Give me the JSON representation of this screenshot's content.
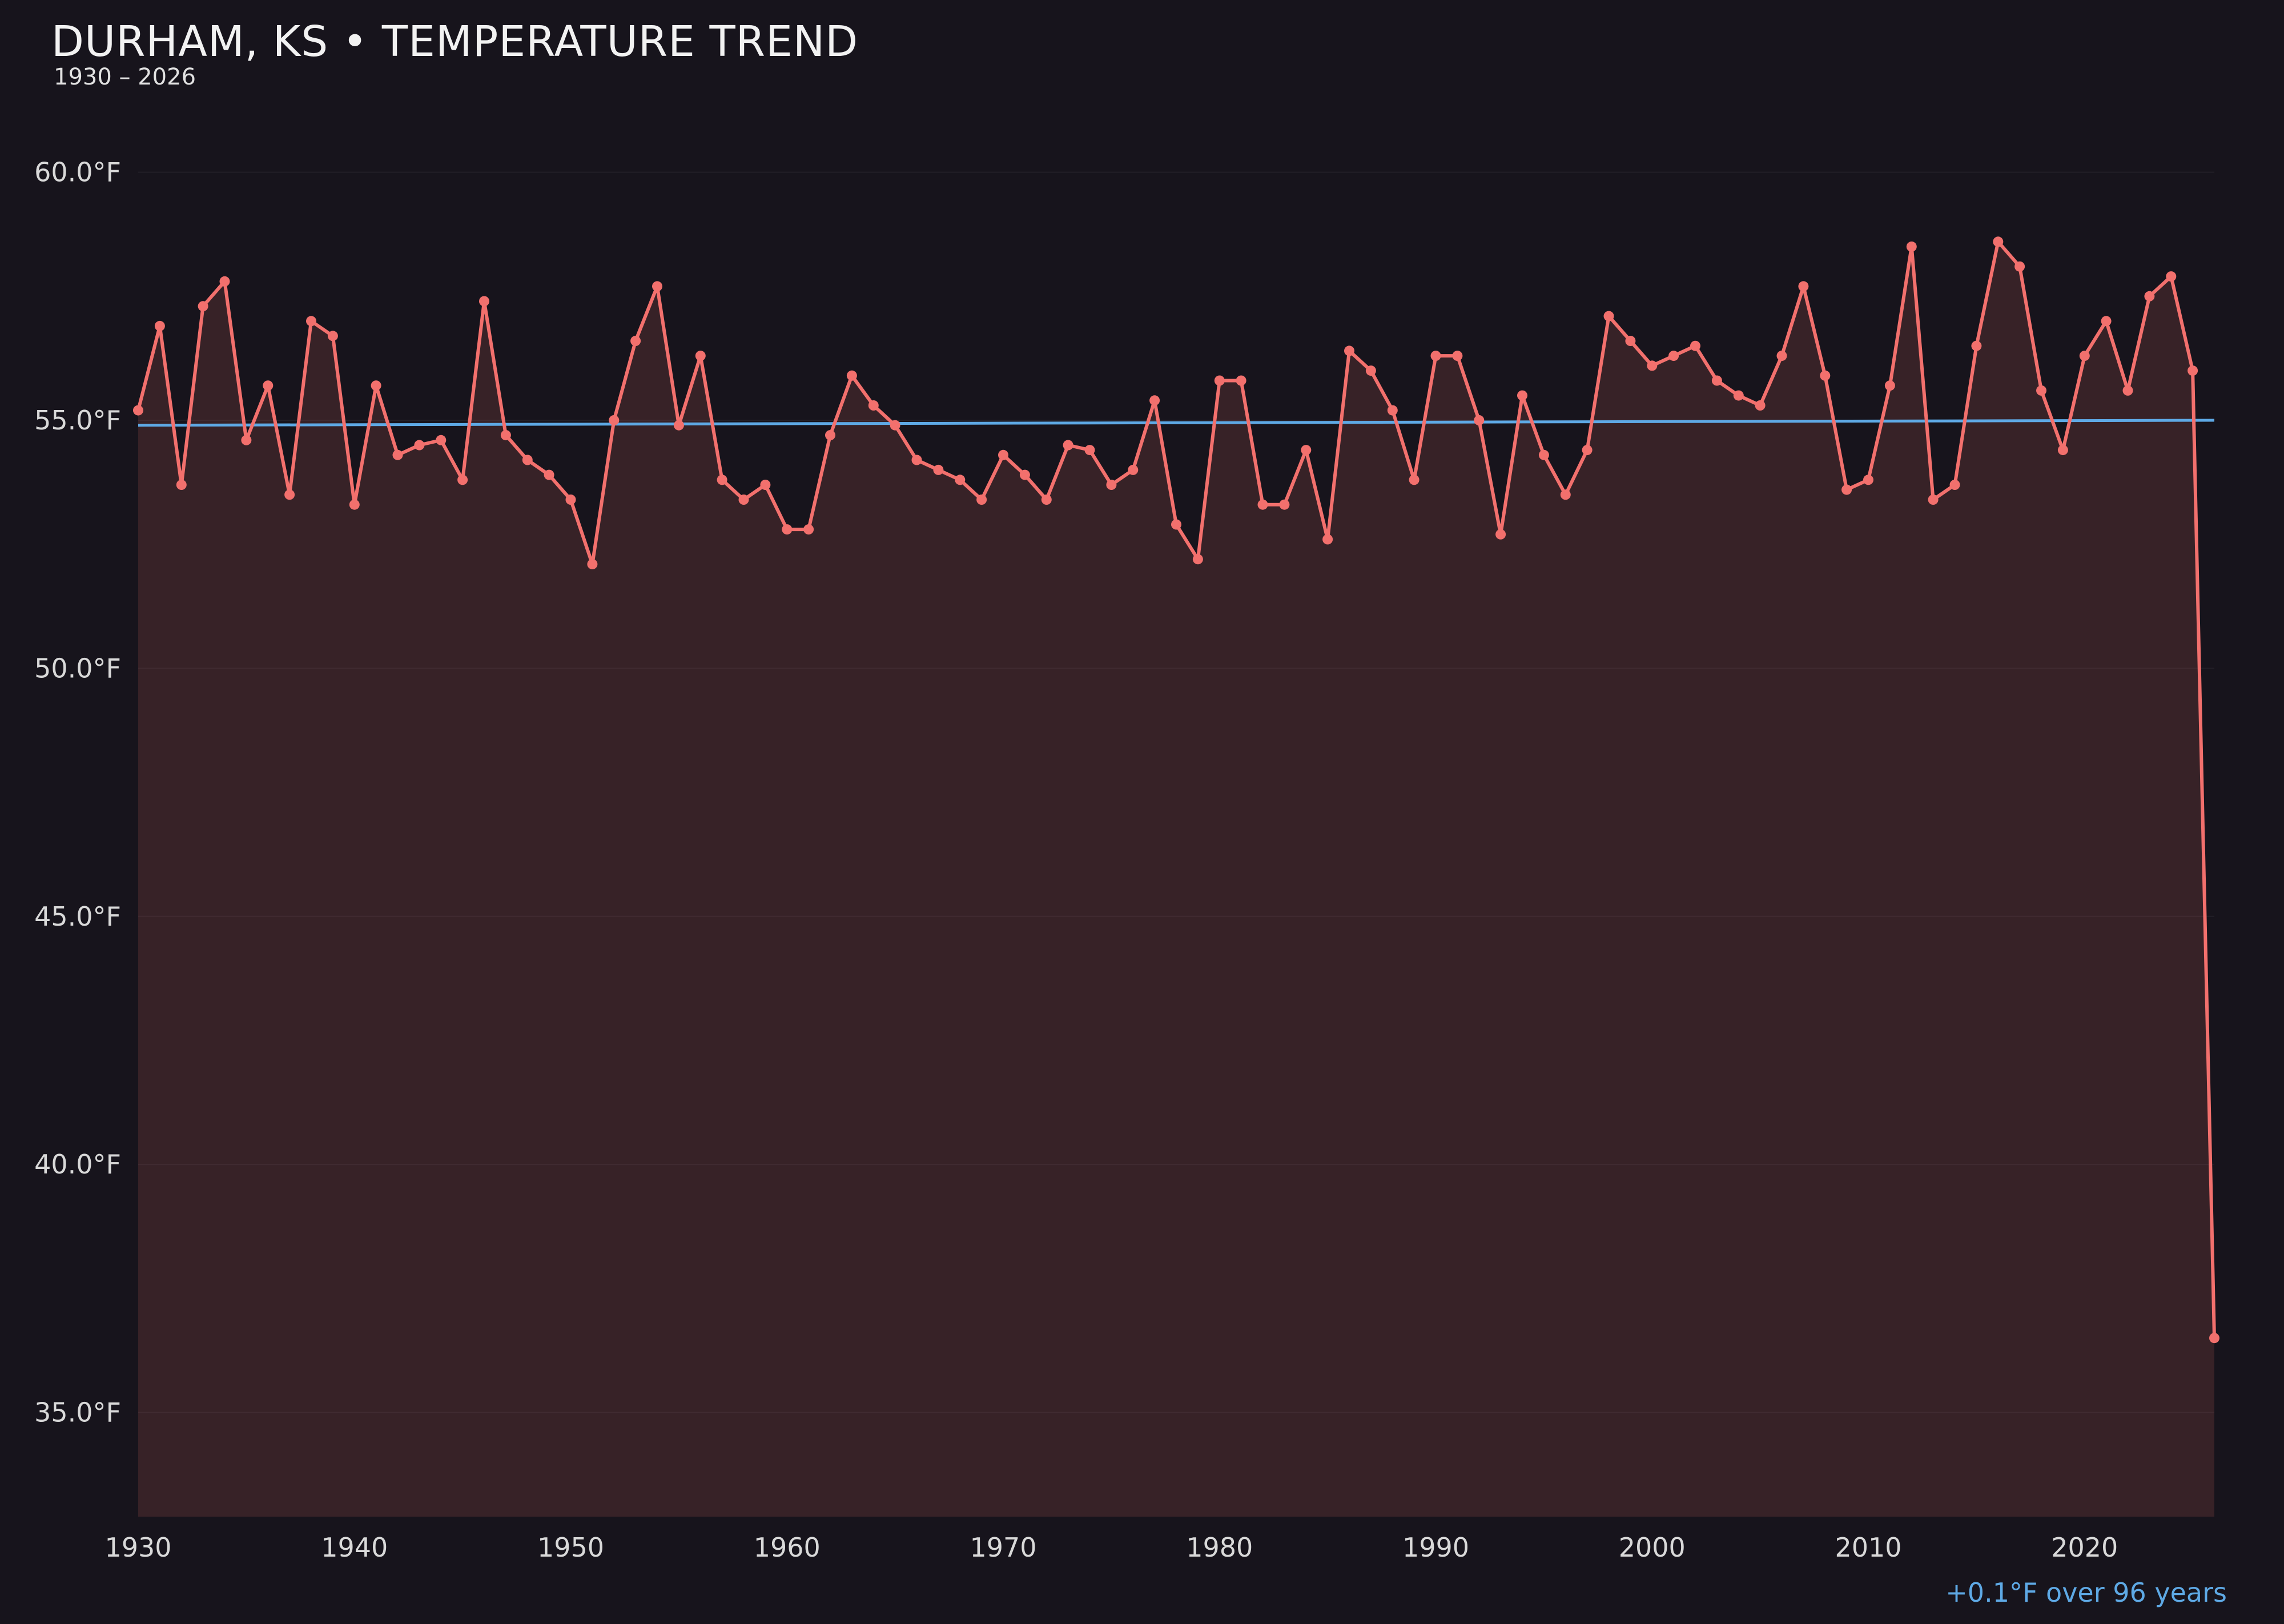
{
  "header": {
    "title": "DURHAM, KS • TEMPERATURE TREND",
    "subtitle": "1930 – 2026"
  },
  "footer": {
    "trend_note": "+0.1°F over 96 years"
  },
  "chart_data": {
    "type": "line",
    "title": "DURHAM, KS • TEMPERATURE TREND",
    "subtitle": "1930 – 2026",
    "xlabel": "",
    "ylabel": "",
    "x": [
      1930,
      1931,
      1932,
      1933,
      1934,
      1935,
      1936,
      1937,
      1938,
      1939,
      1940,
      1941,
      1942,
      1943,
      1944,
      1945,
      1946,
      1947,
      1948,
      1949,
      1950,
      1951,
      1952,
      1953,
      1954,
      1955,
      1956,
      1957,
      1958,
      1959,
      1960,
      1961,
      1962,
      1963,
      1964,
      1965,
      1966,
      1967,
      1968,
      1969,
      1970,
      1971,
      1972,
      1973,
      1974,
      1975,
      1976,
      1977,
      1978,
      1979,
      1980,
      1981,
      1982,
      1983,
      1984,
      1985,
      1986,
      1987,
      1988,
      1989,
      1990,
      1991,
      1992,
      1993,
      1994,
      1995,
      1996,
      1997,
      1998,
      1999,
      2000,
      2001,
      2002,
      2003,
      2004,
      2005,
      2006,
      2007,
      2008,
      2009,
      2010,
      2011,
      2012,
      2013,
      2014,
      2015,
      2016,
      2017,
      2018,
      2019,
      2020,
      2021,
      2022,
      2023,
      2024,
      2025,
      2026
    ],
    "series": [
      {
        "name": "annual-mean-temperature",
        "values": [
          55.2,
          56.9,
          53.7,
          57.3,
          57.8,
          54.6,
          55.7,
          53.5,
          57.0,
          56.7,
          53.3,
          55.7,
          54.3,
          54.5,
          54.6,
          53.8,
          57.4,
          54.7,
          54.2,
          53.9,
          53.4,
          52.1,
          55.0,
          56.6,
          57.7,
          54.9,
          56.3,
          53.8,
          53.4,
          53.7,
          52.8,
          52.8,
          54.7,
          55.9,
          55.3,
          54.9,
          54.2,
          54.0,
          53.8,
          53.4,
          54.3,
          53.9,
          53.4,
          54.5,
          54.4,
          53.7,
          54.0,
          55.4,
          52.9,
          52.2,
          55.8,
          55.8,
          53.3,
          53.3,
          54.4,
          52.6,
          56.4,
          56.0,
          55.2,
          53.8,
          56.3,
          56.3,
          55.0,
          52.7,
          55.5,
          54.3,
          53.5,
          54.4,
          57.1,
          56.6,
          56.1,
          56.3,
          56.5,
          55.8,
          55.5,
          55.3,
          56.3,
          57.7,
          55.9,
          53.6,
          53.8,
          55.7,
          58.5,
          53.4,
          53.7,
          56.5,
          58.6,
          58.1,
          55.6,
          54.4,
          56.3,
          57.0,
          55.6,
          57.5,
          57.9,
          56.0,
          36.5
        ]
      }
    ],
    "trend": {
      "start_value": 54.9,
      "end_value": 55.0,
      "label": "+0.1°F over 96 years"
    },
    "xlim": [
      1930,
      2026
    ],
    "ylim": [
      32.9,
      61.4
    ],
    "yticks": [
      35,
      40,
      45,
      50,
      55,
      60
    ],
    "ytick_labels": [
      "35.0°F",
      "40.0°F",
      "45.0°F",
      "50.0°F",
      "55.0°F",
      "60.0°F"
    ],
    "xticks": [
      1930,
      1940,
      1950,
      1960,
      1970,
      1980,
      1990,
      2000,
      2010,
      2020
    ],
    "xtick_labels": [
      "1930",
      "1940",
      "1950",
      "1960",
      "1970",
      "1980",
      "1990",
      "2000",
      "2010",
      "2020"
    ],
    "legend": "none",
    "grid": "subtle-horizontal",
    "colors": {
      "background": "#17141c",
      "line": "#f2706d",
      "marker": "#f2706d",
      "fill_alpha": 0.15,
      "trend": "#5ea9e5",
      "title": "#f2f2f2",
      "tick": "#d9d9d9",
      "annotation": "#5ea9e5",
      "gridline": "rgba(255,255,255,0.05)"
    }
  }
}
